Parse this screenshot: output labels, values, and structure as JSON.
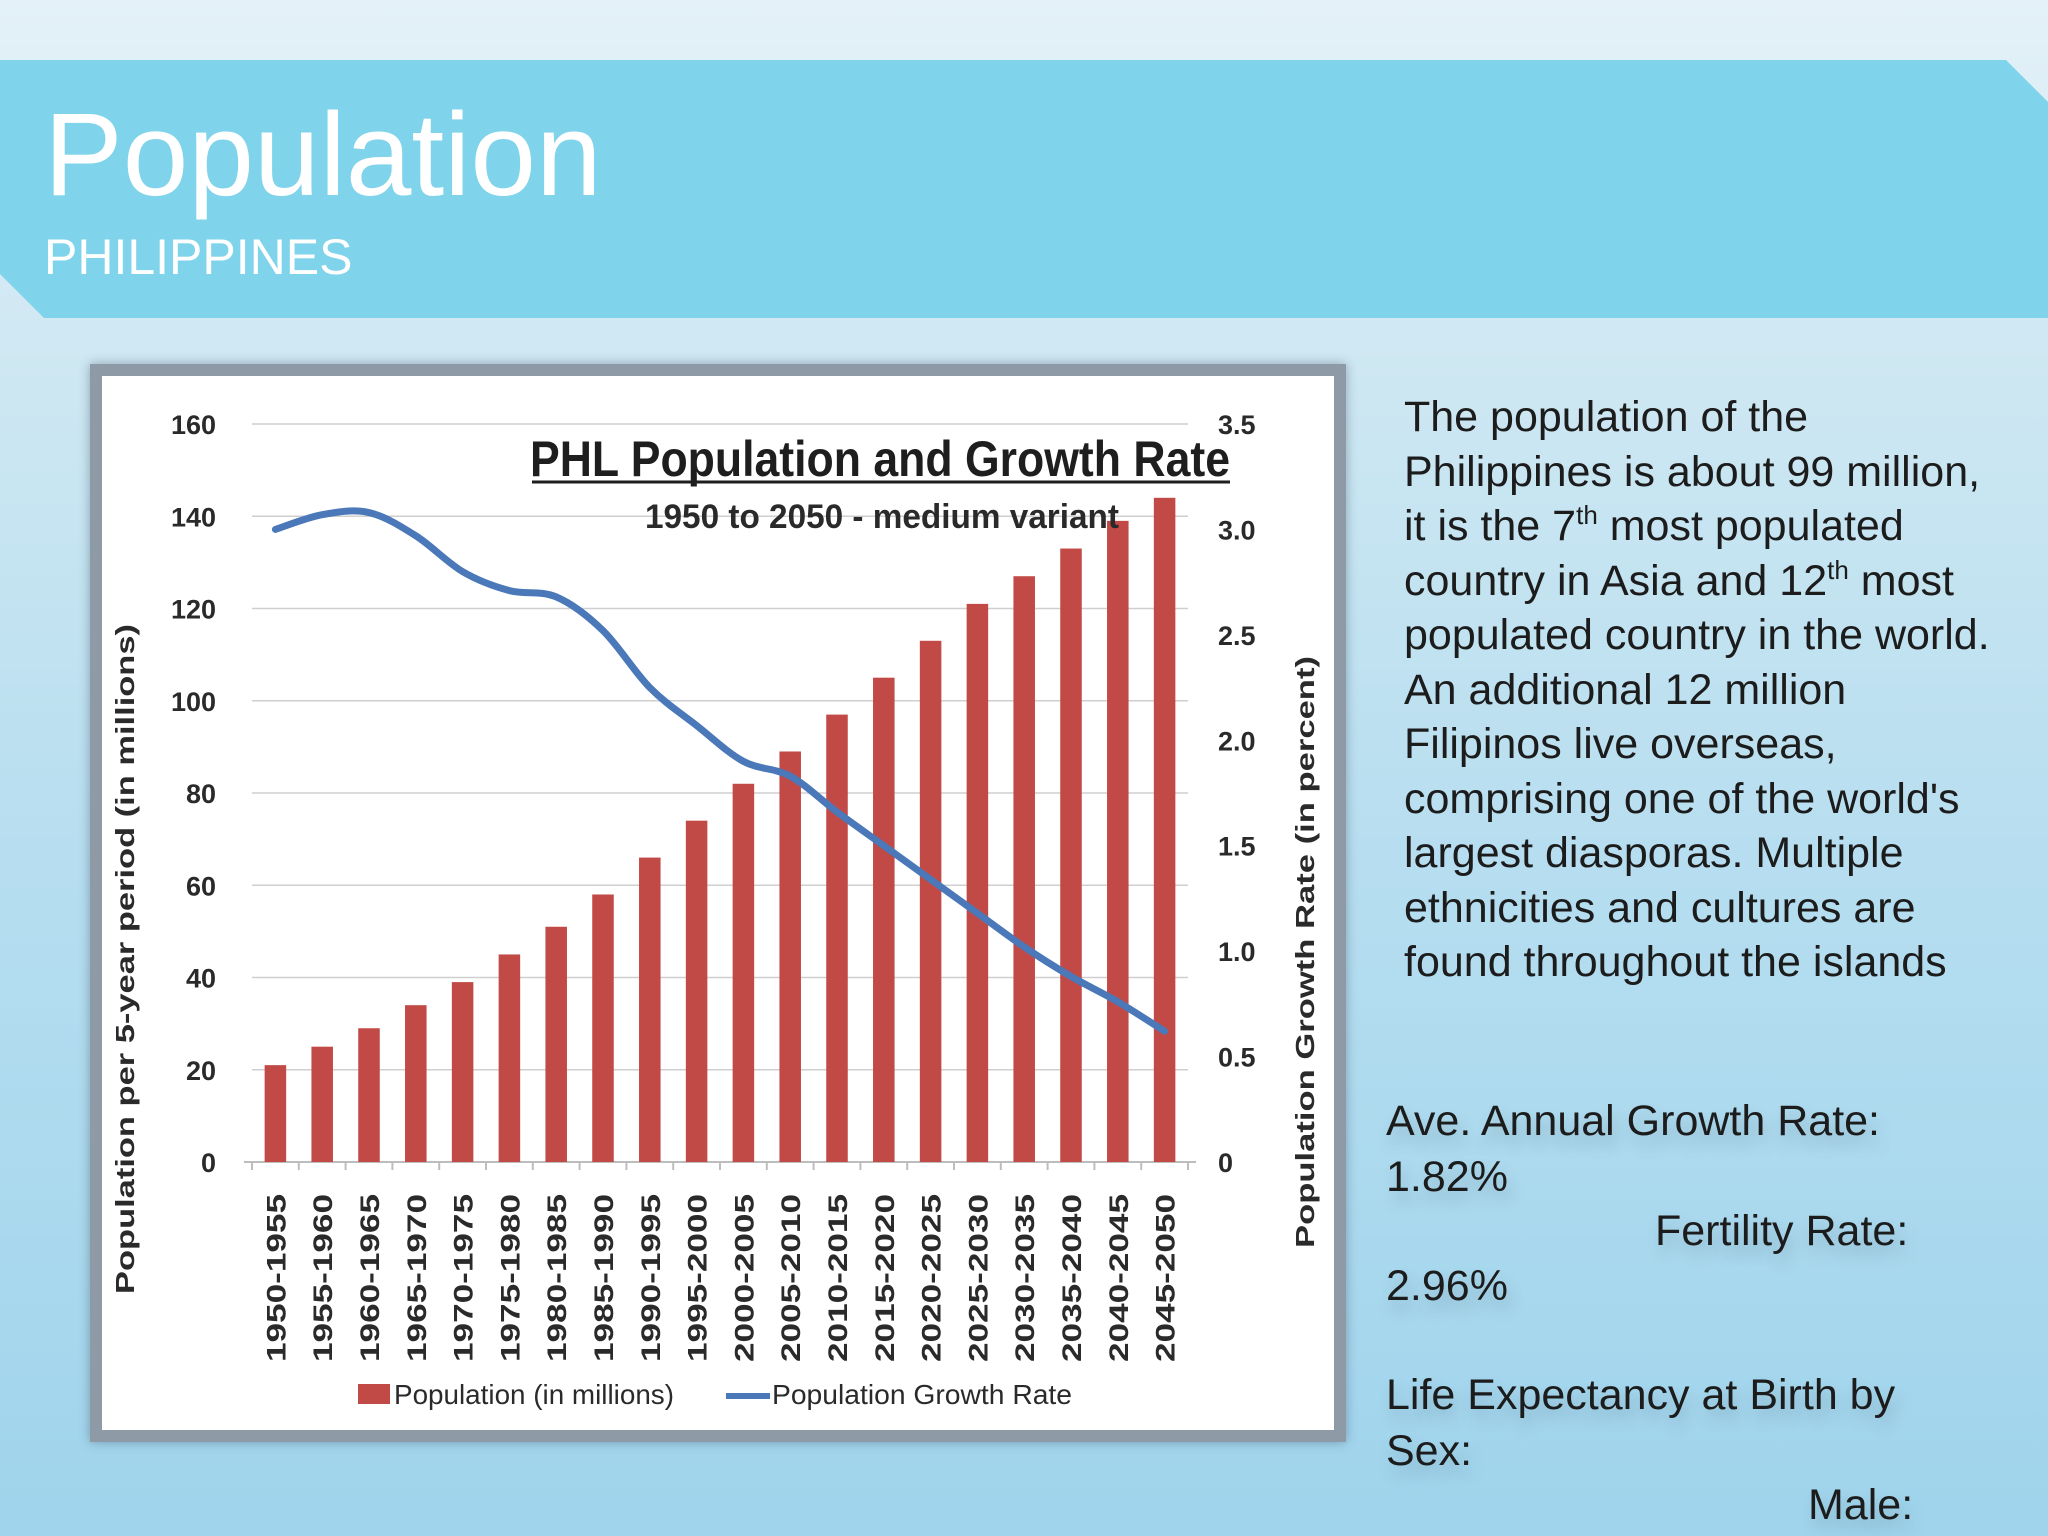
{
  "slide": {
    "title": "Population",
    "subtitle": "PHILIPPINES",
    "colors": {
      "title_band": "#7fd3ea",
      "bar": "#c24a46",
      "line": "#4a78b8",
      "frame": "#8e9aa6"
    }
  },
  "description": {
    "part1": "The population of  the Philippines is about 99 million, it is the 7",
    "sup1": "th",
    "part2": " most populated country in Asia and 12",
    "sup2": "th",
    "part3": " most populated country  in the world. An additional 12 million Filipinos live overseas, comprising one of the world's largest diasporas. Multiple ethnicities and cultures are found throughout the islands"
  },
  "stats": {
    "growth_label": "Ave. Annual Growth Rate:",
    "growth_value": "1.82%",
    "fertility_label": "Fertility Rate:",
    "fertility_value": "2.96%",
    "life_label_1": "Life Expectancy at Birth by",
    "life_label_2": "Sex:",
    "male_label": "Male:"
  },
  "chart_data": {
    "type": "bar",
    "title": "PHL Population and Growth Rate",
    "subtitle": "1950 to 2050 - medium variant",
    "ylabel": "Population per 5-year period (in millions)",
    "y2label": "Population Growth Rate (in percent)",
    "ylim": [
      0,
      160
    ],
    "y2lim": [
      0,
      3.5
    ],
    "y_ticks": [
      "0",
      "20",
      "40",
      "60",
      "80",
      "100",
      "120",
      "140",
      "160"
    ],
    "y2_ticks": [
      "0",
      "0.5",
      "1.0",
      "1.5",
      "2.0",
      "2.5",
      "3.0",
      "3.5"
    ],
    "grid": true,
    "legend_position": "bottom",
    "categories": [
      "1950-1955",
      "1955-1960",
      "1960-1965",
      "1965-1970",
      "1970-1975",
      "1975-1980",
      "1980-1985",
      "1985-1990",
      "1990-1995",
      "1995-2000",
      "2000-2005",
      "2005-2010",
      "2010-2015",
      "2015-2020",
      "2020-2025",
      "2025-2030",
      "2030-2035",
      "2035-2040",
      "2040-2045",
      "2045-2050"
    ],
    "series": [
      {
        "name": "Population (in millions)",
        "type": "bar",
        "axis": "left",
        "color": "#c24a46",
        "values": [
          21,
          25,
          29,
          34,
          39,
          45,
          51,
          58,
          66,
          74,
          82,
          89,
          97,
          105,
          113,
          121,
          127,
          133,
          139,
          144
        ]
      },
      {
        "name": "Population Growth  Rate",
        "type": "line",
        "axis": "right",
        "color": "#4a78b8",
        "values": [
          3.0,
          3.07,
          3.08,
          2.97,
          2.8,
          2.71,
          2.68,
          2.52,
          2.25,
          2.07,
          1.9,
          1.83,
          1.66,
          1.5,
          1.34,
          1.18,
          1.02,
          0.88,
          0.76,
          0.62
        ]
      }
    ]
  }
}
